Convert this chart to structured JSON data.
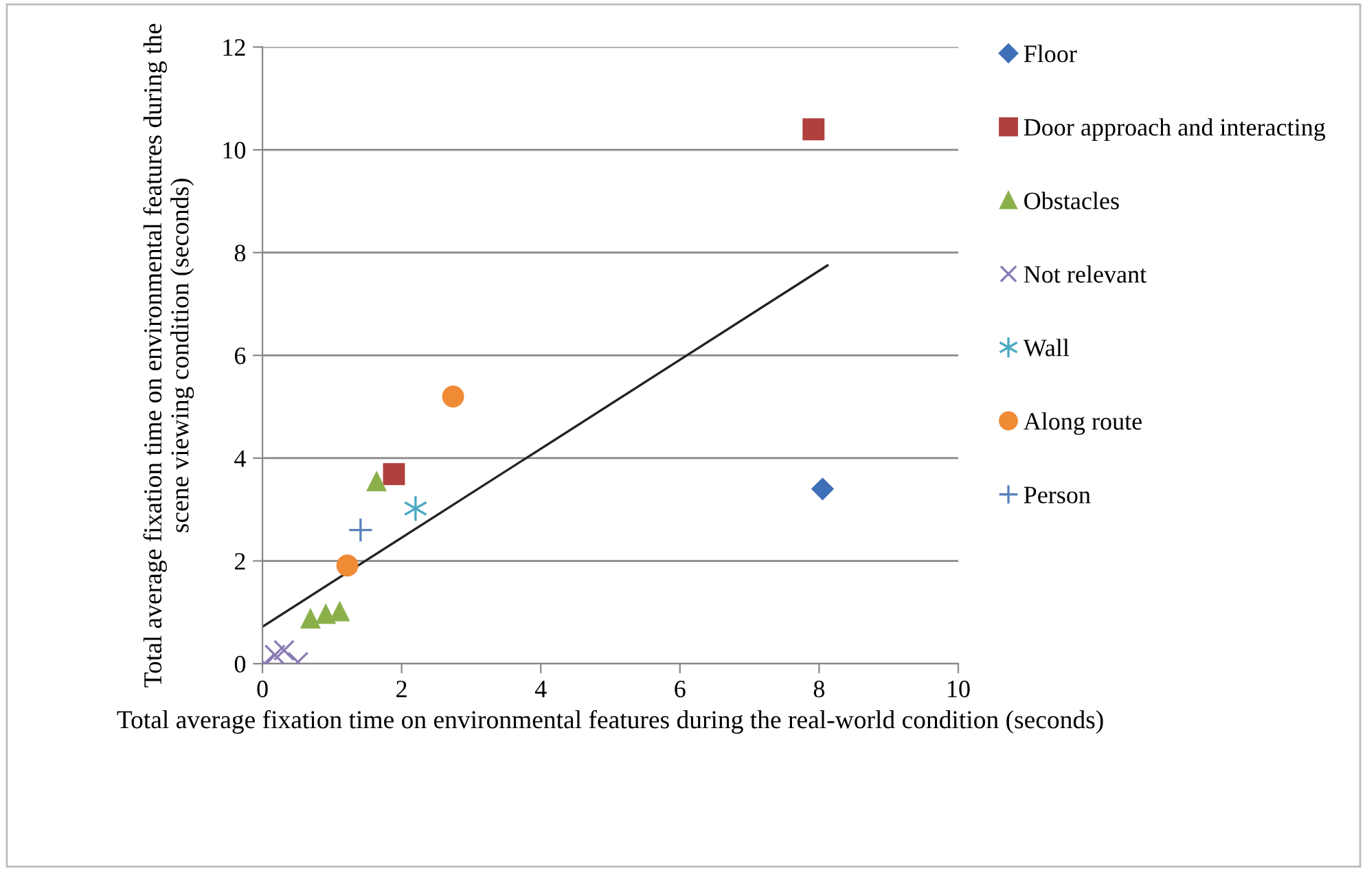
{
  "chart_data": {
    "type": "scatter",
    "xlabel": "Total average fixation time on environmental features during the real-world condition (seconds)",
    "ylabel": "Total average fixation time on environmental features during the scene viewing condition (seconds)",
    "xlim": [
      0,
      10
    ],
    "xticks": [
      0,
      2,
      4,
      6,
      8,
      10
    ],
    "ylim": [
      0,
      12
    ],
    "yticks": [
      0,
      2,
      4,
      6,
      8,
      10,
      12
    ],
    "grid": "y",
    "legend": "right",
    "series": [
      {
        "name": "Floor",
        "color": "#3f6fb6",
        "marker": "diamond",
        "x": [
          8.05
        ],
        "values": [
          3.4
        ]
      },
      {
        "name": "Door approach and interacting",
        "color": "#b0403d",
        "marker": "square",
        "x": [
          7.92,
          1.89
        ],
        "values": [
          10.4,
          3.69
        ]
      },
      {
        "name": "Obstacles",
        "color": "#8bb04a",
        "marker": "triangle",
        "x": [
          1.64,
          0.69,
          0.91,
          1.11
        ],
        "values": [
          3.55,
          0.88,
          0.97,
          1.02
        ]
      },
      {
        "name": "Not relevant",
        "color": "#8a7bb4",
        "marker": "x",
        "x": [
          0.03,
          0.18,
          0.31,
          0.51
        ],
        "values": [
          0,
          0.17,
          0.26,
          0.03
        ]
      },
      {
        "name": "Wall",
        "color": "#4aa9c4",
        "marker": "cross",
        "x": [
          2.2
        ],
        "values": [
          3.02
        ]
      },
      {
        "name": "Along route",
        "color": "#ef8a35",
        "marker": "circle",
        "x": [
          2.74,
          1.22
        ],
        "values": [
          5.2,
          1.91
        ]
      },
      {
        "name": "Person",
        "color": "#5b82bd",
        "marker": "plus",
        "x": [
          1.41
        ],
        "values": [
          2.6
        ]
      },
      {
        "type": "line",
        "color": "#222222",
        "marker": "none",
        "x": [
          0,
          8.12
        ],
        "values": [
          0.72,
          7.75
        ]
      }
    ]
  }
}
